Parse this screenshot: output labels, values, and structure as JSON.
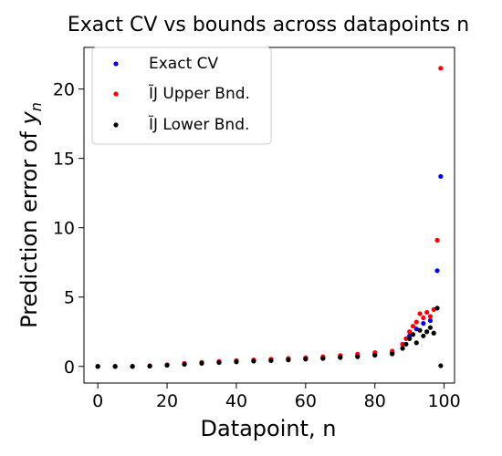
{
  "chart_data": {
    "type": "scatter",
    "title": "Exact CV vs bounds across datapoints n",
    "xlabel": "Datapoint, n",
    "ylabel": "Prediction error of ",
    "ylabel_var": "y",
    "ylabel_sub": "n",
    "xlim": [
      -4,
      103
    ],
    "ylim": [
      -1.2,
      23
    ],
    "xticks": [
      0,
      20,
      40,
      60,
      80,
      100
    ],
    "yticks": [
      0,
      5,
      10,
      15,
      20
    ],
    "grid": false,
    "legend_position": "upper-left",
    "legend": [
      {
        "label": "Exact CV",
        "color": "#0000ff"
      },
      {
        "label": "ĨJ Upper Bnd.",
        "color": "#ff0000"
      },
      {
        "label": "ĨJ Lower Bnd.",
        "color": "#000000"
      }
    ],
    "series": [
      {
        "name": "Exact CV",
        "color": "#0000ff",
        "x": [
          0,
          5,
          10,
          15,
          20,
          25,
          30,
          35,
          40,
          45,
          50,
          55,
          60,
          65,
          70,
          75,
          80,
          85,
          88,
          90,
          92,
          94,
          96,
          98,
          99
        ],
        "y": [
          0,
          0,
          0,
          0.03,
          0.1,
          0.18,
          0.25,
          0.3,
          0.36,
          0.4,
          0.44,
          0.5,
          0.55,
          0.6,
          0.68,
          0.75,
          0.85,
          1.0,
          1.6,
          2.2,
          2.7,
          3.1,
          3.3,
          6.9,
          13.7
        ]
      },
      {
        "name": "ĨJ Upper Bnd.",
        "color": "#ff0000",
        "x": [
          0,
          5,
          10,
          15,
          20,
          25,
          30,
          35,
          40,
          45,
          50,
          55,
          60,
          65,
          70,
          75,
          80,
          85,
          88,
          89,
          90,
          91,
          92,
          93,
          94,
          95,
          96,
          97,
          98,
          99
        ],
        "y": [
          0,
          0,
          0,
          0.05,
          0.12,
          0.22,
          0.3,
          0.36,
          0.42,
          0.47,
          0.52,
          0.58,
          0.63,
          0.7,
          0.78,
          0.88,
          1.0,
          1.1,
          1.6,
          2.0,
          2.5,
          2.9,
          3.2,
          3.8,
          3.5,
          3.9,
          3.6,
          4.1,
          9.1,
          21.5
        ]
      },
      {
        "name": "ĨJ Lower Bnd.",
        "color": "#000000",
        "x": [
          0,
          5,
          10,
          15,
          20,
          25,
          30,
          35,
          40,
          45,
          50,
          55,
          60,
          65,
          70,
          75,
          80,
          85,
          88,
          89,
          90,
          91,
          92,
          93,
          94,
          95,
          96,
          97,
          98,
          99
        ],
        "y": [
          0,
          0,
          0,
          0.02,
          0.08,
          0.15,
          0.22,
          0.28,
          0.33,
          0.38,
          0.42,
          0.47,
          0.52,
          0.57,
          0.64,
          0.7,
          0.8,
          0.9,
          1.3,
          1.6,
          2.0,
          2.3,
          1.7,
          2.6,
          2.2,
          2.5,
          2.8,
          2.4,
          4.2,
          0.05
        ]
      }
    ]
  }
}
